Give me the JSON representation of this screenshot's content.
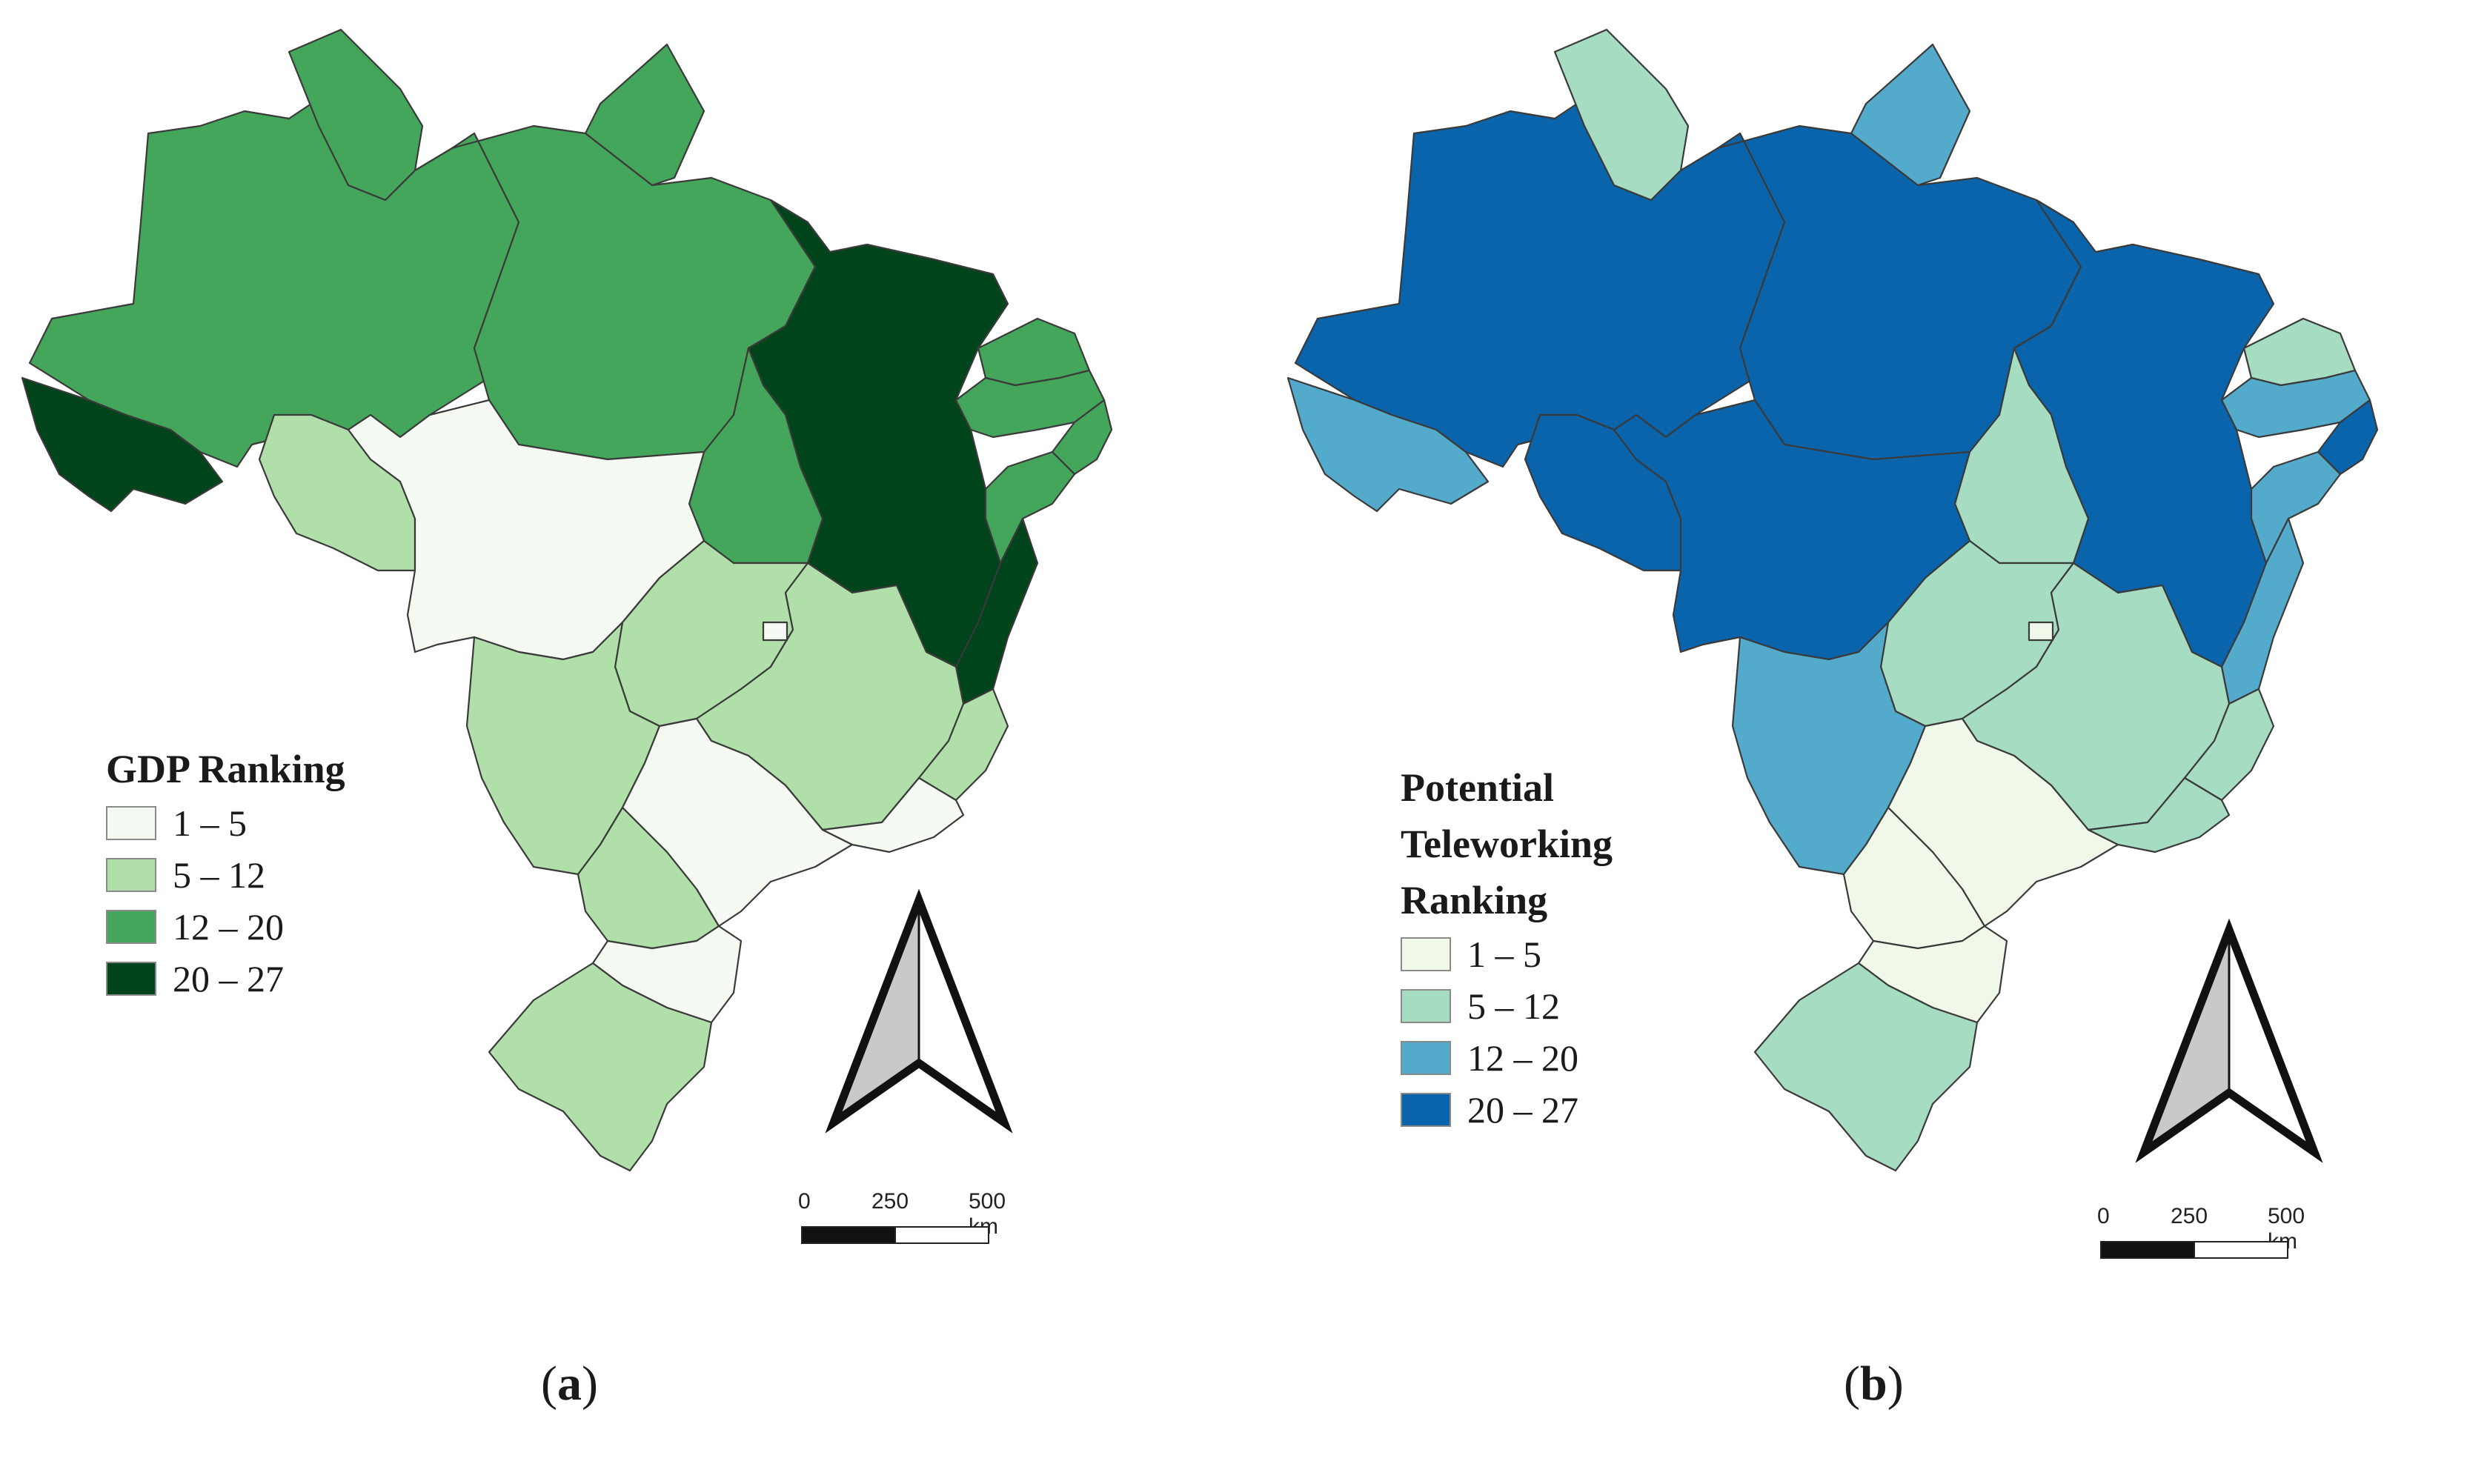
{
  "panels": [
    {
      "id": "a",
      "caption_letter": "a",
      "legend_title": "GDP Ranking",
      "legend": [
        {
          "label": "1 – 5",
          "color": "#f4faf1"
        },
        {
          "label": "5 – 12",
          "color": "#b0dfaa"
        },
        {
          "label": "12 – 20",
          "color": "#44a65b"
        },
        {
          "label": "20 – 27",
          "color": "#00441b"
        }
      ]
    },
    {
      "id": "b",
      "caption_letter": "b",
      "legend_title": "Potential Teleworking Ranking",
      "legend": [
        {
          "label": "1 – 5",
          "color": "#eff8e9"
        },
        {
          "label": "5 – 12",
          "color": "#a5dcc2"
        },
        {
          "label": "12 – 20",
          "color": "#53aacb"
        },
        {
          "label": "20 – 27",
          "color": "#0a64ab"
        }
      ]
    }
  ],
  "scale_bar": {
    "ticks": [
      "0",
      "250",
      "500 km"
    ]
  },
  "regions": [
    {
      "id": "north-west-amazon",
      "gdp_class": 2,
      "tele_class": 3
    },
    {
      "id": "far-west-tip",
      "gdp_class": 3,
      "tele_class": 2
    },
    {
      "id": "north-roraima",
      "gdp_class": 2,
      "tele_class": 1
    },
    {
      "id": "north-central-para",
      "gdp_class": 2,
      "tele_class": 3
    },
    {
      "id": "north-east-amapa",
      "gdp_class": 2,
      "tele_class": 2
    },
    {
      "id": "northeast-maranhao-piaui-bahia",
      "gdp_class": 3,
      "tele_class": 3
    },
    {
      "id": "northeast-coast-upper",
      "gdp_class": 2,
      "tele_class": 1
    },
    {
      "id": "northeast-coast-middle",
      "gdp_class": 2,
      "tele_class": 2
    },
    {
      "id": "northeast-coast-tip",
      "gdp_class": 2,
      "tele_class": 3
    },
    {
      "id": "northeast-coast-lower",
      "gdp_class": 2,
      "tele_class": 2
    },
    {
      "id": "tocantins",
      "gdp_class": 2,
      "tele_class": 1
    },
    {
      "id": "bahia-east-coast",
      "gdp_class": 3,
      "tele_class": 2
    },
    {
      "id": "rondonia",
      "gdp_class": 1,
      "tele_class": 3
    },
    {
      "id": "mato-grosso",
      "gdp_class": 0,
      "tele_class": 3
    },
    {
      "id": "goias",
      "gdp_class": 1,
      "tele_class": 1
    },
    {
      "id": "minas-gerais",
      "gdp_class": 1,
      "tele_class": 1
    },
    {
      "id": "espirito-santo",
      "gdp_class": 1,
      "tele_class": 1
    },
    {
      "id": "mato-grosso-do-sul",
      "gdp_class": 1,
      "tele_class": 2
    },
    {
      "id": "sao-paulo",
      "gdp_class": 0,
      "tele_class": 0
    },
    {
      "id": "rio-de-janeiro",
      "gdp_class": 0,
      "tele_class": 1
    },
    {
      "id": "parana",
      "gdp_class": 1,
      "tele_class": 0
    },
    {
      "id": "santa-catarina",
      "gdp_class": 0,
      "tele_class": 0
    },
    {
      "id": "rio-grande-do-sul",
      "gdp_class": 1,
      "tele_class": 1
    },
    {
      "id": "federal-district",
      "gdp_class": 0,
      "tele_class": 0
    }
  ]
}
